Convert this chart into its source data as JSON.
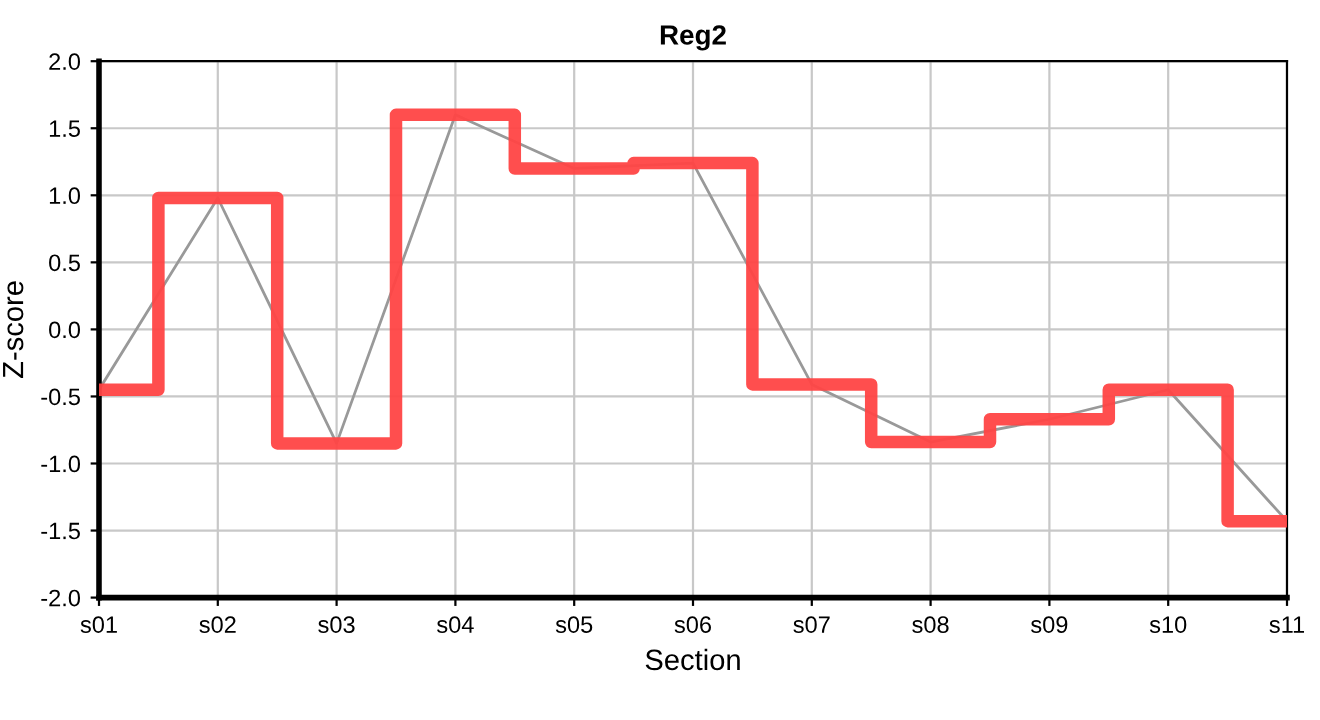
{
  "chart_data": {
    "type": "line",
    "title": "Reg2",
    "xlabel": "Section",
    "ylabel": "Z-score",
    "categories": [
      "s01",
      "s02",
      "s03",
      "s04",
      "s05",
      "s06",
      "s07",
      "s08",
      "s09",
      "s10",
      "s11"
    ],
    "series": [
      {
        "color": "#999999",
        "values": [
          -0.45,
          0.98,
          -0.85,
          1.6,
          1.2,
          1.24,
          -0.41,
          -0.84,
          -0.67,
          -0.45,
          -1.43
        ]
      },
      {
        "type": "step",
        "color": "#ff4444",
        "values": [
          -0.45,
          0.98,
          -0.85,
          1.6,
          1.2,
          1.24,
          -0.41,
          -0.84,
          -0.67,
          -0.45,
          -1.43
        ]
      }
    ],
    "ylim": [
      -2,
      2
    ],
    "yticks": [
      {
        "value": -2,
        "label": "-2.0"
      },
      {
        "value": -1.5,
        "label": "-1.5"
      },
      {
        "value": -1,
        "label": "-1.0"
      },
      {
        "value": -0.5,
        "label": "-0.5"
      },
      {
        "value": 0,
        "label": "0.0"
      },
      {
        "value": 0.5,
        "label": "0.5"
      },
      {
        "value": 1,
        "label": "1.0"
      },
      {
        "value": 1.5,
        "label": "1.5"
      },
      {
        "value": 2,
        "label": "2.0"
      }
    ],
    "grid": true
  }
}
